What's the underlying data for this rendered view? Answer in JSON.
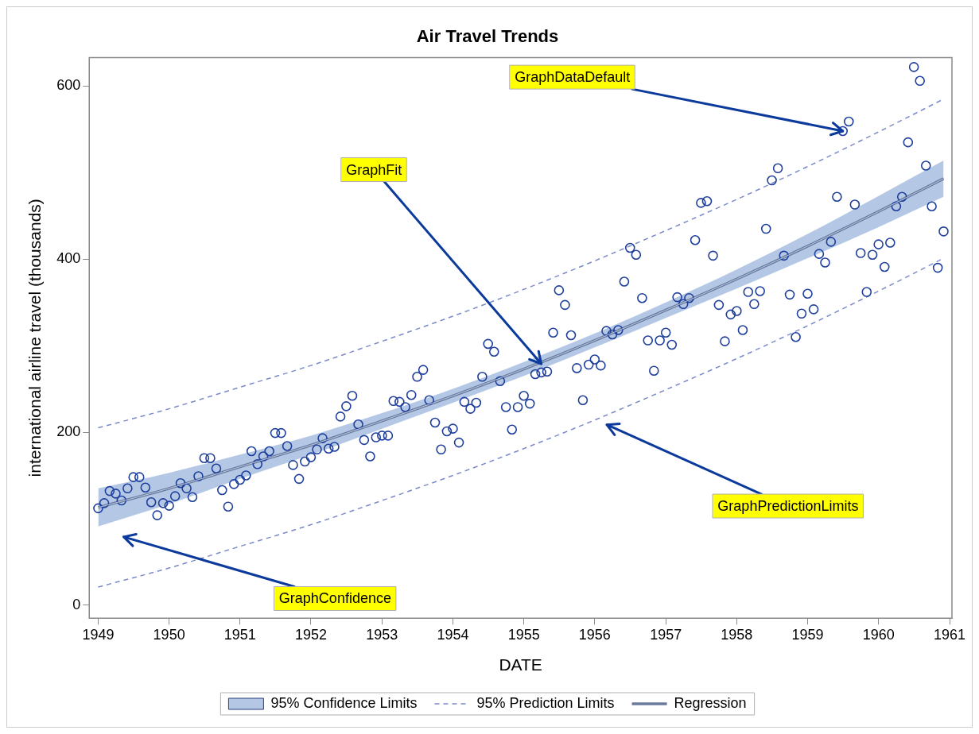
{
  "chart_data": {
    "type": "scatter",
    "title": "Air Travel Trends",
    "xlabel": "DATE",
    "ylabel": "international airline travel (thousands)",
    "x": [
      "1949-01",
      "1949-02",
      "1949-03",
      "1949-04",
      "1949-05",
      "1949-06",
      "1949-07",
      "1949-08",
      "1949-09",
      "1949-10",
      "1949-11",
      "1949-12",
      "1950-01",
      "1950-02",
      "1950-03",
      "1950-04",
      "1950-05",
      "1950-06",
      "1950-07",
      "1950-08",
      "1950-09",
      "1950-10",
      "1950-11",
      "1950-12",
      "1951-01",
      "1951-02",
      "1951-03",
      "1951-04",
      "1951-05",
      "1951-06",
      "1951-07",
      "1951-08",
      "1951-09",
      "1951-10",
      "1951-11",
      "1951-12",
      "1952-01",
      "1952-02",
      "1952-03",
      "1952-04",
      "1952-05",
      "1952-06",
      "1952-07",
      "1952-08",
      "1952-09",
      "1952-10",
      "1952-11",
      "1952-12",
      "1953-01",
      "1953-02",
      "1953-03",
      "1953-04",
      "1953-05",
      "1953-06",
      "1953-07",
      "1953-08",
      "1953-09",
      "1953-10",
      "1953-11",
      "1953-12",
      "1954-01",
      "1954-02",
      "1954-03",
      "1954-04",
      "1954-05",
      "1954-06",
      "1954-07",
      "1954-08",
      "1954-09",
      "1954-10",
      "1954-11",
      "1954-12",
      "1955-01",
      "1955-02",
      "1955-03",
      "1955-04",
      "1955-05",
      "1955-06",
      "1955-07",
      "1955-08",
      "1955-09",
      "1955-10",
      "1955-11",
      "1955-12",
      "1956-01",
      "1956-02",
      "1956-03",
      "1956-04",
      "1956-05",
      "1956-06",
      "1956-07",
      "1956-08",
      "1956-09",
      "1956-10",
      "1956-11",
      "1956-12",
      "1957-01",
      "1957-02",
      "1957-03",
      "1957-04",
      "1957-05",
      "1957-06",
      "1957-07",
      "1957-08",
      "1957-09",
      "1957-10",
      "1957-11",
      "1957-12",
      "1958-01",
      "1958-02",
      "1958-03",
      "1958-04",
      "1958-05",
      "1958-06",
      "1958-07",
      "1958-08",
      "1958-09",
      "1958-10",
      "1958-11",
      "1958-12",
      "1959-01",
      "1959-02",
      "1959-03",
      "1959-04",
      "1959-05",
      "1959-06",
      "1959-07",
      "1959-08",
      "1959-09",
      "1959-10",
      "1959-11",
      "1959-12",
      "1960-01",
      "1960-02",
      "1960-03",
      "1960-04",
      "1960-05",
      "1960-06",
      "1960-07",
      "1960-08",
      "1960-09",
      "1960-10",
      "1960-11",
      "1960-12"
    ],
    "series": [
      {
        "type": "line",
        "name": "95% Confidence Limits",
        "color": "#b4c8e6",
        "x": [
          "1949-01",
          "1950-01",
          "1951-01",
          "1952-01",
          "1953-01",
          "1954-01",
          "1955-01",
          "1956-01",
          "1957-01",
          "1958-01",
          "1959-01",
          "1960-01",
          "1960-12"
        ],
        "values": [
          113,
          135,
          160,
          185,
          213,
          242,
          273,
          306,
          341,
          377,
          415,
          455,
          493
        ],
        "lower": [
          91,
          117,
          146,
          174,
          204,
          234,
          265,
          298,
          332,
          366,
          401,
          437,
          472
        ],
        "upper": [
          135,
          153,
          174,
          196,
          222,
          250,
          281,
          314,
          350,
          388,
          429,
          473,
          514
        ]
      },
      {
        "type": "line",
        "name": "95% Prediction Limits",
        "color": "#7b8ac8",
        "line_style": "dashed",
        "x": [
          "1949-01",
          "1950-01",
          "1951-01",
          "1952-01",
          "1953-01",
          "1954-01",
          "1955-01",
          "1956-01",
          "1957-01",
          "1958-01",
          "1959-01",
          "1960-01",
          "1960-12"
        ],
        "values": [
          205,
          227,
          252,
          277,
          305,
          334,
          365,
          398,
          433,
          469,
          507,
          547,
          585
        ]
      },
      {
        "type": "line",
        "color": "#7b8ac8",
        "line_style": "dashed",
        "x": [
          "1949-01",
          "1950-01",
          "1951-01",
          "1952-01",
          "1953-01",
          "1954-01",
          "1955-01",
          "1956-01",
          "1957-01",
          "1958-01",
          "1959-01",
          "1960-01",
          "1960-12"
        ],
        "values": [
          21,
          43,
          68,
          93,
          121,
          150,
          181,
          214,
          249,
          285,
          323,
          363,
          401
        ]
      },
      {
        "type": "line",
        "name": "Regression",
        "color": "#6b7a9c",
        "line_style": "solid",
        "x": [
          "1949-01",
          "1950-01",
          "1951-01",
          "1952-01",
          "1953-01",
          "1954-01",
          "1955-01",
          "1956-01",
          "1957-01",
          "1958-01",
          "1959-01",
          "1960-01",
          "1960-12"
        ],
        "values": [
          113,
          135,
          160,
          185,
          213,
          242,
          273,
          306,
          341,
          377,
          415,
          455,
          493
        ]
      },
      {
        "color": "#1f3f9c",
        "marker": "circle",
        "values": [
          112,
          118,
          132,
          129,
          121,
          135,
          148,
          148,
          136,
          119,
          104,
          118,
          115,
          126,
          141,
          135,
          125,
          149,
          170,
          170,
          158,
          133,
          114,
          140,
          145,
          150,
          178,
          163,
          172,
          178,
          199,
          199,
          184,
          162,
          146,
          166,
          171,
          180,
          193,
          181,
          183,
          218,
          230,
          242,
          209,
          191,
          172,
          194,
          196,
          196,
          236,
          235,
          229,
          243,
          264,
          272,
          237,
          211,
          180,
          201,
          204,
          188,
          235,
          227,
          234,
          264,
          302,
          293,
          259,
          229,
          203,
          229,
          242,
          233,
          267,
          269,
          270,
          315,
          364,
          347,
          312,
          274,
          237,
          278,
          284,
          277,
          317,
          313,
          318,
          374,
          413,
          405,
          355,
          306,
          271,
          306,
          315,
          301,
          356,
          348,
          355,
          422,
          465,
          467,
          404,
          347,
          305,
          336,
          340,
          318,
          362,
          348,
          363,
          435,
          491,
          505,
          404,
          359,
          310,
          337,
          360,
          342,
          406,
          396,
          420,
          472,
          548,
          559,
          463,
          407,
          362,
          405,
          417,
          391,
          419,
          461,
          472,
          535,
          622,
          606,
          508,
          461,
          390,
          432
        ]
      }
    ],
    "xlim": [
      "1948-11-16",
      "1961-01-13"
    ],
    "xticks": [
      "1949",
      "1950",
      "1951",
      "1952",
      "1953",
      "1954",
      "1955",
      "1956",
      "1957",
      "1958",
      "1959",
      "1960",
      "1961"
    ],
    "ylim": [
      -15,
      633
    ],
    "yticks": [
      0,
      200,
      400,
      600
    ],
    "grid": false,
    "legend": "bottom",
    "annotations": [
      {
        "text": "GraphDataDefault",
        "x": "1959-07",
        "y": 548
      },
      {
        "text": "GraphFit",
        "x": "1955-04",
        "y": 279
      },
      "GraphConfidence",
      "GraphPredictionLimits"
    ]
  }
}
